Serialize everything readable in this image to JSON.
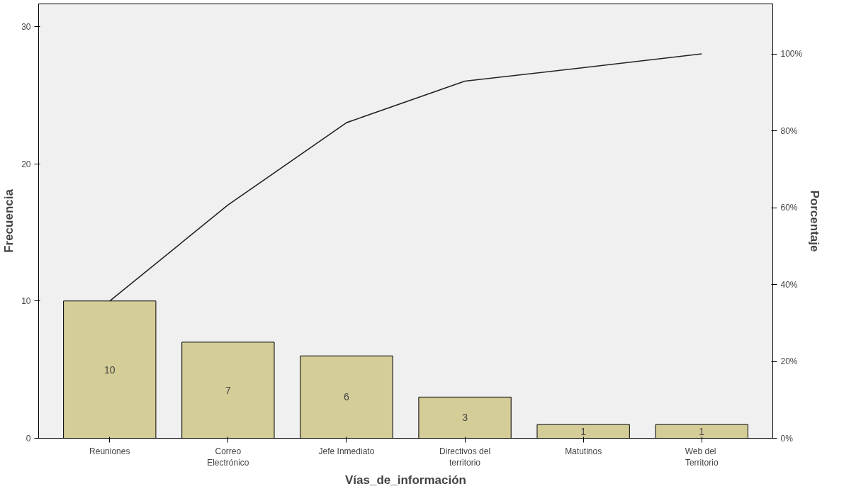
{
  "chart_data": {
    "type": "bar",
    "xlabel": "Vías_de_información",
    "ylabel": "Frecuencia",
    "y2label": "Porcentaje",
    "categories": [
      "Reuniones",
      "Correo\nElectrónico",
      "Jefe Inmediato",
      "Directivos del\nterritorio",
      "Matutinos",
      "Web  del\nTerritorio"
    ],
    "series": [
      {
        "color": "#d4cd98",
        "values": [
          10,
          7,
          6,
          3,
          1,
          1
        ],
        "value_labels": [
          "10",
          "7",
          "6",
          "3",
          "1",
          "1"
        ]
      },
      {
        "type": "line",
        "axis": "y2",
        "color": "#222222",
        "values": [
          35.7,
          60.7,
          82.1,
          92.9,
          96.4,
          100
        ]
      }
    ],
    "ylim": [
      0,
      31.64
    ],
    "yticks": [
      0,
      10,
      20,
      30
    ],
    "y2lim": [
      0,
      113
    ],
    "y2ticks": [
      {
        "value": 0,
        "label": "0%"
      },
      {
        "value": 20,
        "label": "20%"
      },
      {
        "value": 40,
        "label": "40%"
      },
      {
        "value": 60,
        "label": "60%"
      },
      {
        "value": 80,
        "label": "80%"
      },
      {
        "value": 100,
        "label": "100%"
      }
    ],
    "grid": false
  }
}
